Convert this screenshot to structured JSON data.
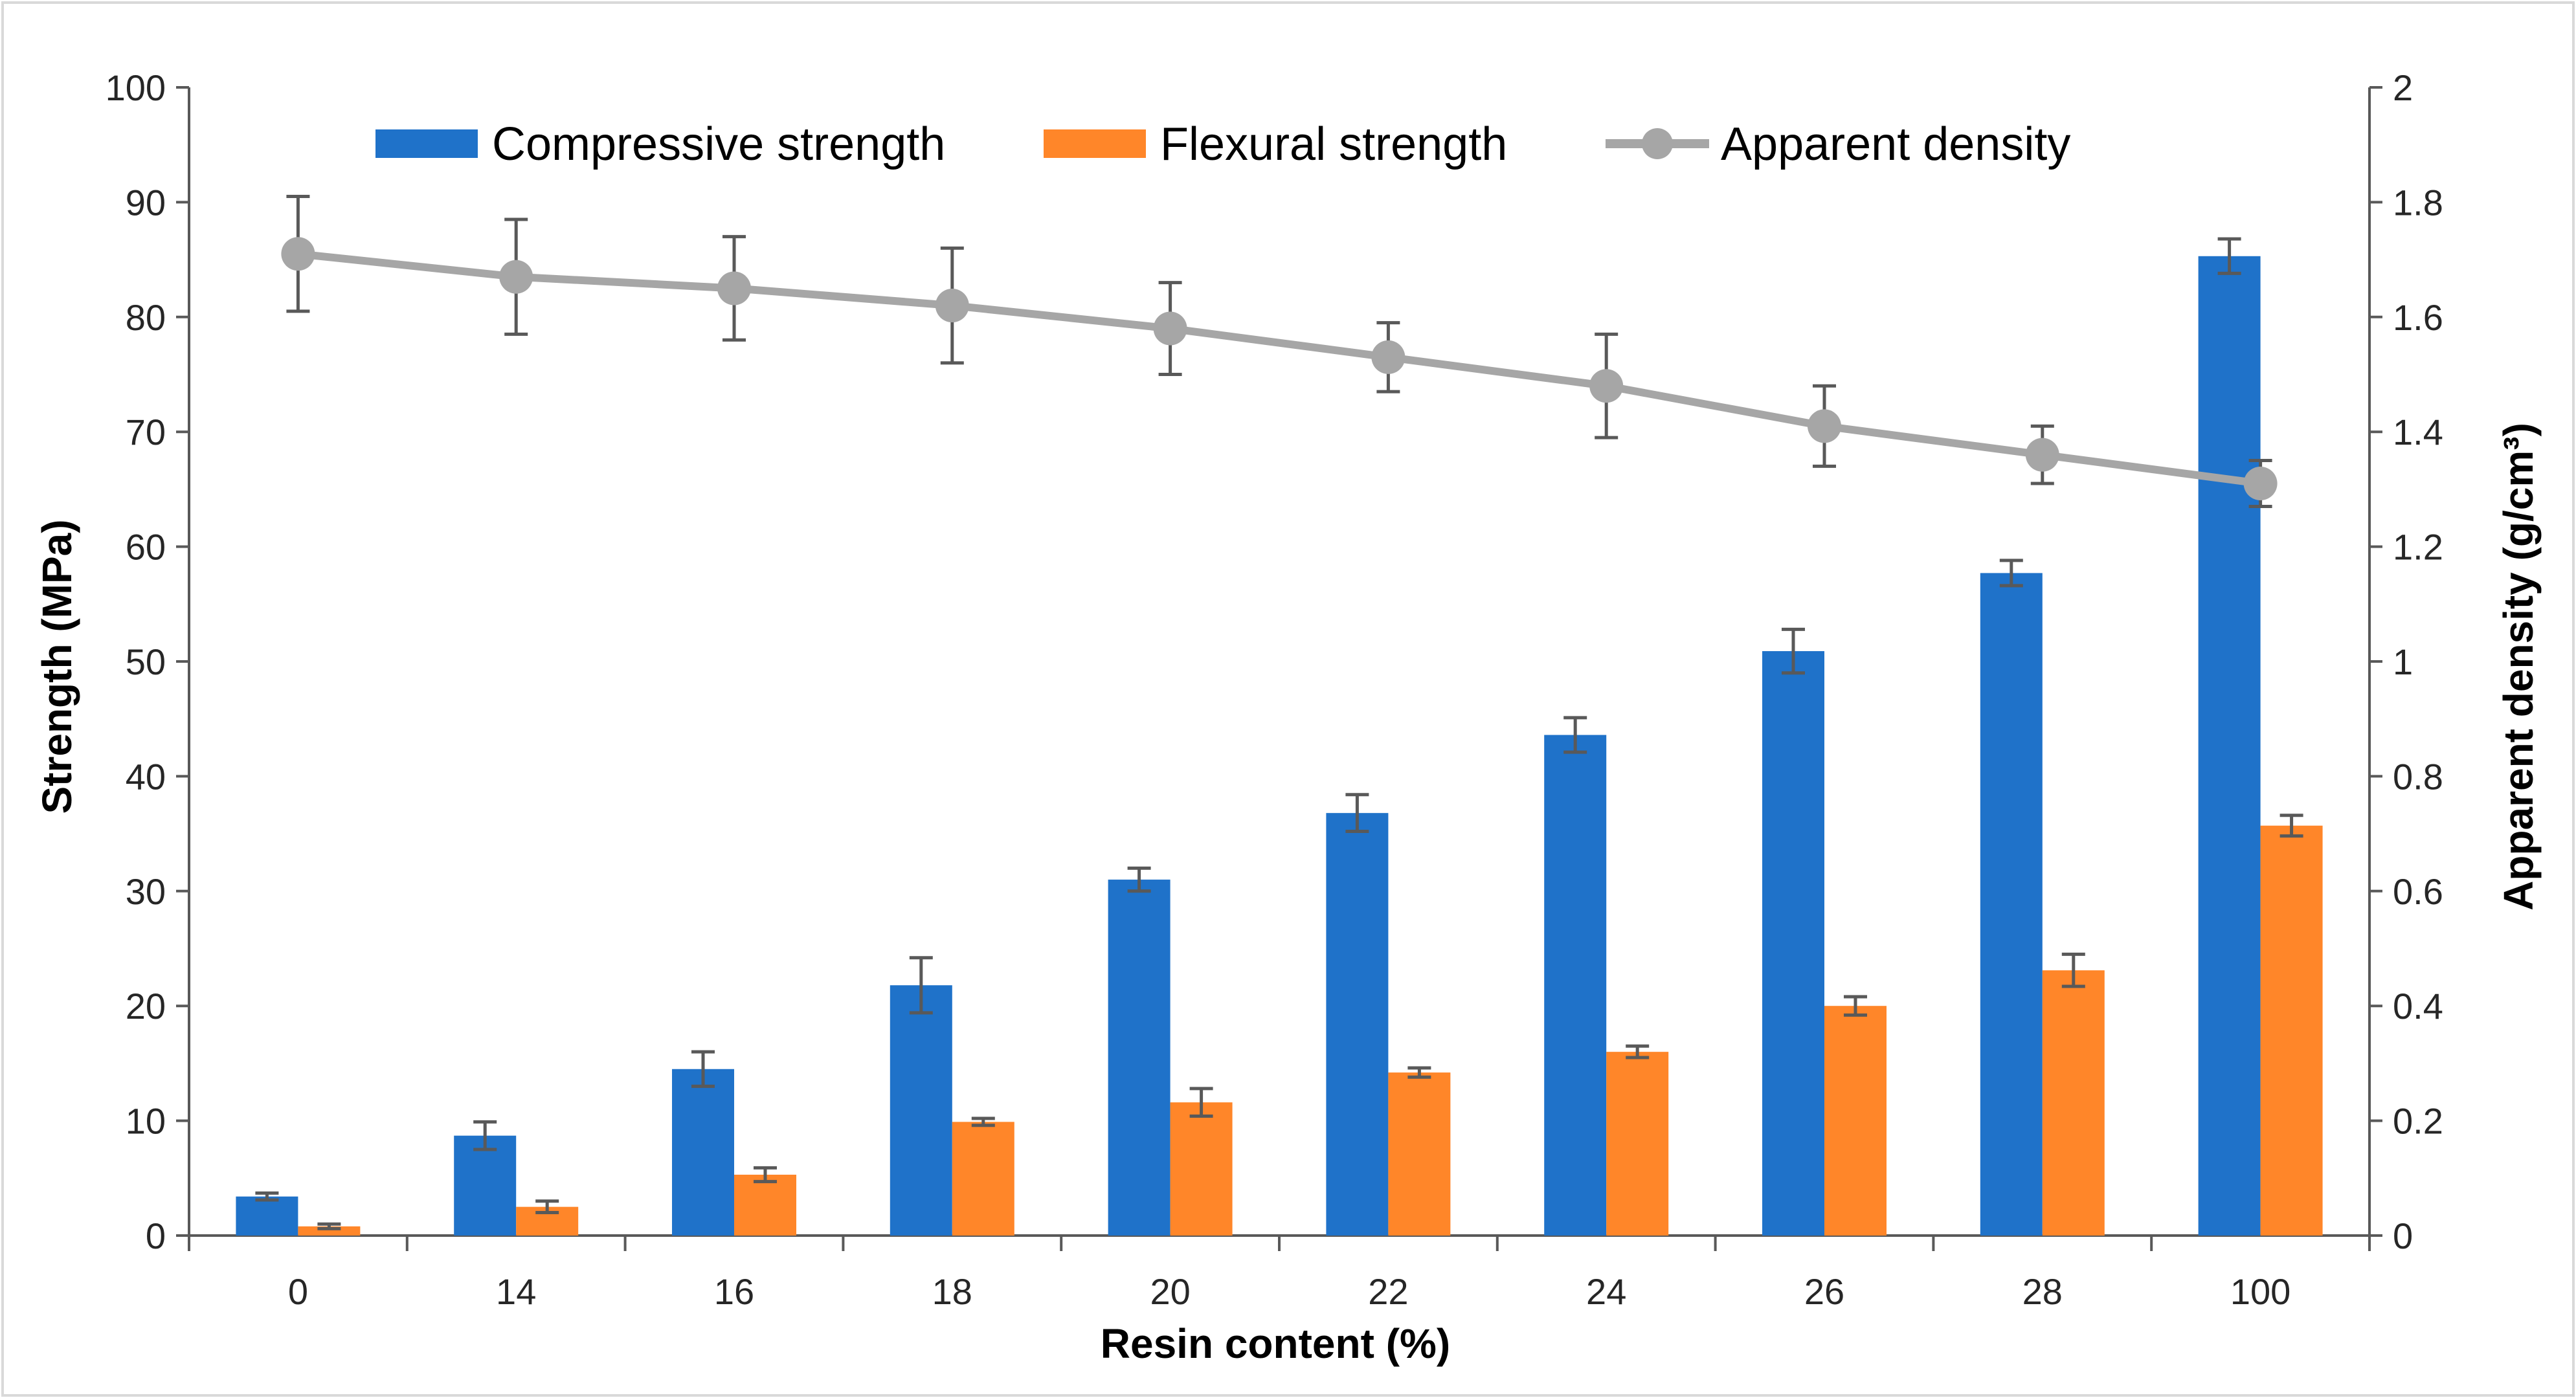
{
  "chart_data": {
    "type": "bar",
    "categories": [
      "0",
      "14",
      "16",
      "18",
      "20",
      "22",
      "24",
      "26",
      "28",
      "100"
    ],
    "series": [
      {
        "name": "Compressive strength",
        "axis": "left",
        "kind": "bar",
        "color": "#1F72C9",
        "values": [
          3.4,
          8.7,
          14.5,
          21.8,
          31.0,
          36.8,
          43.6,
          50.9,
          57.7,
          85.3
        ],
        "errors": [
          0.3,
          1.2,
          1.5,
          2.4,
          1.0,
          1.6,
          1.5,
          1.9,
          1.1,
          1.5
        ]
      },
      {
        "name": "Flexural strength",
        "axis": "left",
        "kind": "bar",
        "color": "#FF8629",
        "values": [
          0.8,
          2.5,
          5.3,
          9.9,
          11.6,
          14.2,
          16.0,
          20.0,
          23.1,
          35.7
        ],
        "errors": [
          0.2,
          0.5,
          0.6,
          0.3,
          1.2,
          0.4,
          0.5,
          0.8,
          1.4,
          0.9
        ]
      },
      {
        "name": "Apparent density",
        "axis": "right",
        "kind": "line",
        "color": "#A6A6A6",
        "values": [
          1.71,
          1.67,
          1.65,
          1.62,
          1.58,
          1.53,
          1.48,
          1.41,
          1.36,
          1.31
        ],
        "errors": [
          0.1,
          0.1,
          0.09,
          0.1,
          0.08,
          0.06,
          0.09,
          0.07,
          0.05,
          0.04
        ]
      }
    ],
    "xlabel": "Resin content (%)",
    "ylabel": "Strength (MPa)",
    "y2label": "Apparent density (g/cm³)",
    "ylim": [
      0,
      100
    ],
    "y2lim": [
      0,
      2
    ],
    "yticks": [
      "0",
      "10",
      "20",
      "30",
      "40",
      "50",
      "60",
      "70",
      "80",
      "90",
      "100"
    ],
    "y2ticks": [
      "0",
      "0.2",
      "0.4",
      "0.6",
      "0.8",
      "1",
      "1.2",
      "1.4",
      "1.6",
      "1.8",
      "2"
    ],
    "error_color": "#595959",
    "grid": false,
    "legend_position": "top"
  }
}
